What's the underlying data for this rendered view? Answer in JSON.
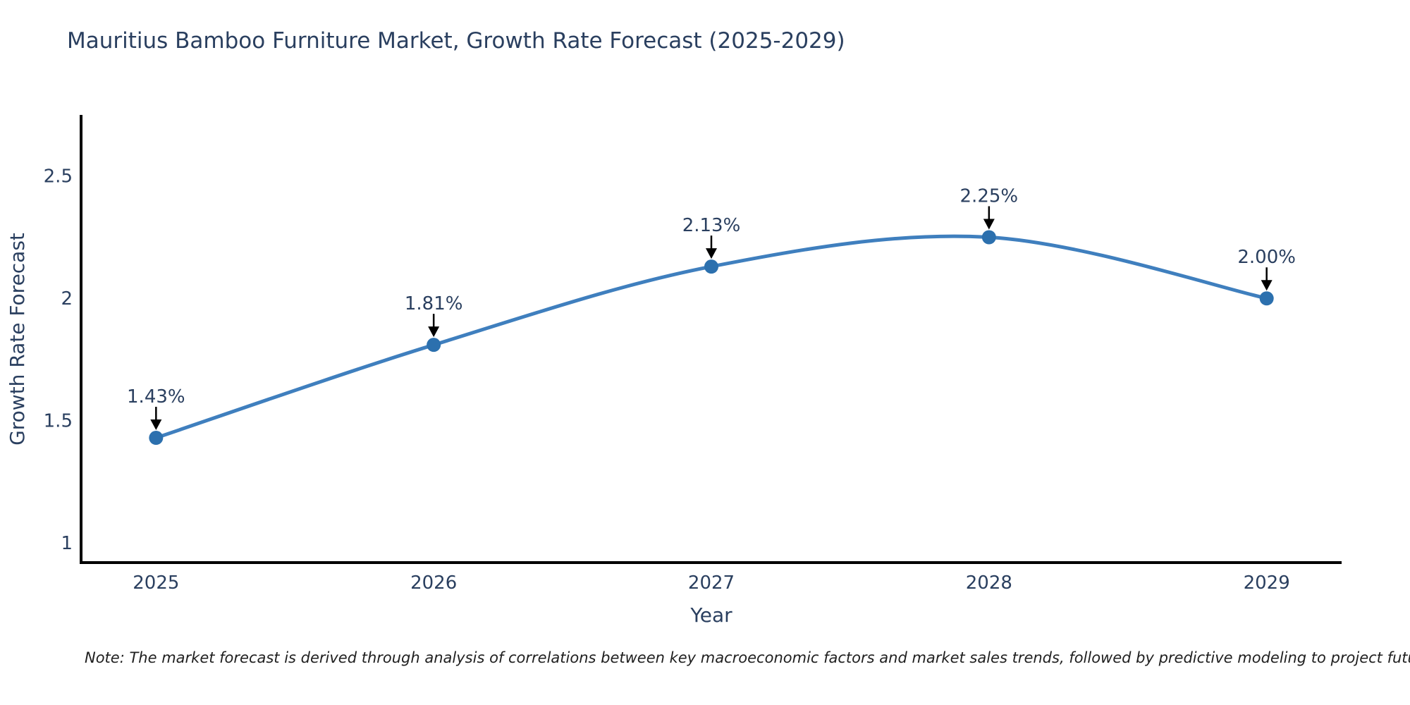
{
  "page": {
    "note": "Note: The market forecast is derived through analysis of correlations between key macroeconomic factors and market sales trends, followed by predictive modeling to project future sales"
  },
  "chart_data": {
    "type": "line",
    "title": "Mauritius Bamboo Furniture Market, Growth Rate Forecast (2025-2029)",
    "x": [
      2025,
      2026,
      2027,
      2028,
      2029
    ],
    "xticks": [
      "2025",
      "2026",
      "2027",
      "2028",
      "2029"
    ],
    "series": [
      {
        "name": "Growth Rate Forecast",
        "values": [
          1.43,
          1.81,
          2.13,
          2.25,
          2.0
        ],
        "point_labels": [
          "1.43%",
          "1.81%",
          "2.13%",
          "2.25%",
          "2.00%"
        ]
      }
    ],
    "xlabel": "Year",
    "ylabel": "Growth Rate Forecast",
    "yticks": [
      2.5,
      2,
      1.5,
      1
    ],
    "xlim": [
      2024.73,
      2029.27
    ],
    "ylim": [
      0.92,
      2.75
    ],
    "line_shape": "spline",
    "grid": false,
    "legend": false,
    "colors": {
      "line": "#3f7fbe",
      "marker": "#2c70ae",
      "text": "#2a3f5f",
      "axis": "#000000",
      "annotation_arrow": "#000000",
      "note_text": "#1f1f1f",
      "background": "#ffffff"
    }
  }
}
